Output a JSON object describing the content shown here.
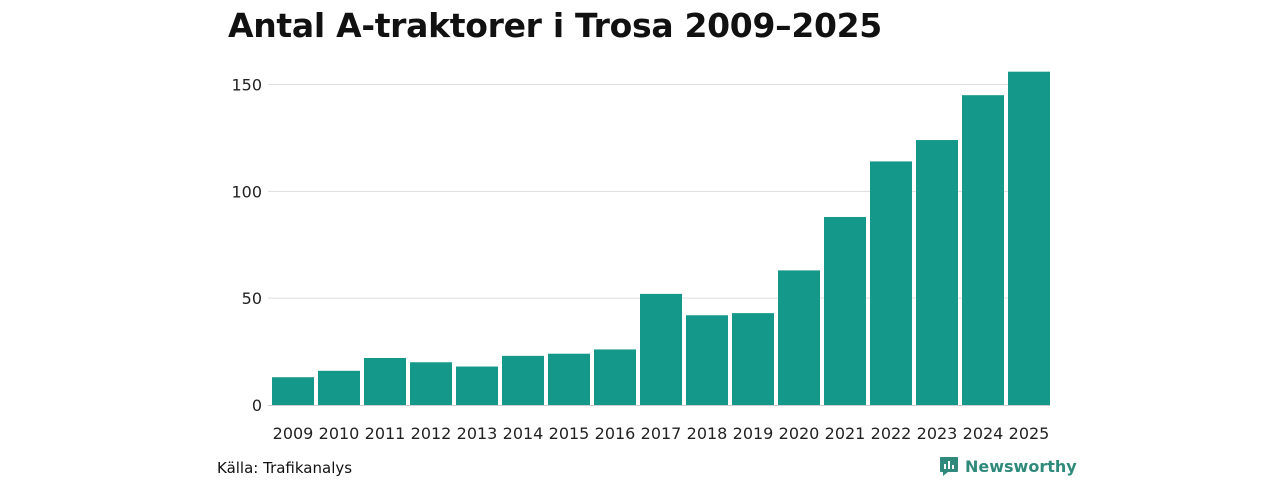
{
  "chart_data": {
    "type": "bar",
    "title": "Antal A-traktorer i Trosa 2009–2025",
    "categories": [
      "2009",
      "2010",
      "2011",
      "2012",
      "2013",
      "2014",
      "2015",
      "2016",
      "2017",
      "2018",
      "2019",
      "2020",
      "2021",
      "2022",
      "2023",
      "2024",
      "2025"
    ],
    "values": [
      13,
      16,
      22,
      20,
      18,
      23,
      24,
      26,
      52,
      42,
      43,
      63,
      88,
      114,
      124,
      145,
      156
    ],
    "ylim": [
      0,
      160
    ],
    "yticks": [
      0,
      50,
      100,
      150
    ],
    "xlabel": "",
    "ylabel": "",
    "grid": true,
    "bar_color": "#14988a",
    "grid_color": "#dddddd"
  },
  "footer": {
    "source": "Källa: Trafikanalys",
    "brand": "Newsworthy",
    "brand_icon": "newsworthy-logo-icon",
    "brand_color": "#2f8a7c"
  }
}
